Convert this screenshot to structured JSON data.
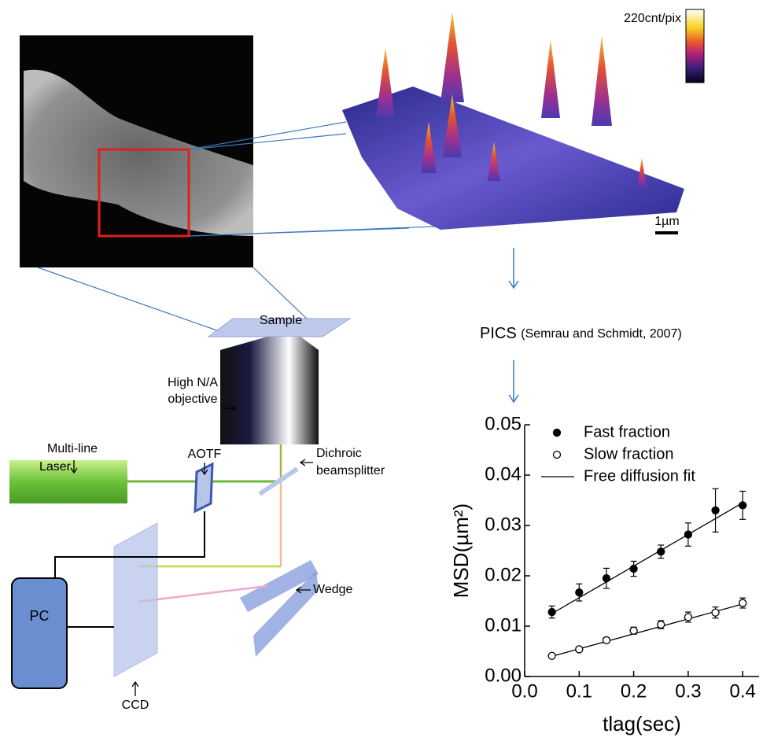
{
  "figure": {
    "colorbar_label": "220cnt/pix",
    "scale_label": "1µm",
    "method": "PICS",
    "citation": "(Semrau and Schmidt, 2007)",
    "setup": {
      "sample": "Sample",
      "objective": [
        "High N/A",
        "objective"
      ],
      "laser": [
        "Multi-line",
        "Laser"
      ],
      "aotf": "AOTF",
      "dichroic": [
        "Dichroic",
        "beamsplitter"
      ],
      "pc": "PC",
      "ccd": "CCD",
      "wedge": "Wedge"
    }
  },
  "chart_data": {
    "type": "scatter",
    "xlabel": "tlag(sec)",
    "ylabel": "MSD(µm²)",
    "xlim": [
      0,
      0.43
    ],
    "ylim": [
      0,
      0.05
    ],
    "xticks": [
      {
        "value": 0,
        "label": "0.0"
      },
      {
        "value": 0.1,
        "label": "0.1"
      },
      {
        "value": 0.2,
        "label": "0.2"
      },
      {
        "value": 0.3,
        "label": "0.3"
      },
      {
        "value": 0.4,
        "label": "0.4"
      }
    ],
    "yticks": [
      {
        "value": 0,
        "label": "0.00"
      },
      {
        "value": 0.01,
        "label": "0.01"
      },
      {
        "value": 0.02,
        "label": "0.02"
      },
      {
        "value": 0.03,
        "label": "0.03"
      },
      {
        "value": 0.04,
        "label": "0.04"
      },
      {
        "value": 0.05,
        "label": "0.05"
      }
    ],
    "x": [
      0.05,
      0.1,
      0.15,
      0.2,
      0.25,
      0.3,
      0.35,
      0.4
    ],
    "series": [
      {
        "name": "Fast fraction",
        "color": "#000000",
        "filled": true,
        "values": [
          0.0128,
          0.0167,
          0.0195,
          0.0214,
          0.0248,
          0.0282,
          0.033,
          0.034
        ],
        "errors": [
          0.0012,
          0.0017,
          0.002,
          0.0015,
          0.0013,
          0.0023,
          0.0043,
          0.0028
        ]
      },
      {
        "name": "Slow fraction",
        "color": "#000000",
        "filled": false,
        "values": [
          0.0041,
          0.0054,
          0.0072,
          0.0091,
          0.0103,
          0.0118,
          0.0127,
          0.0146
        ],
        "errors": [
          0.0003,
          0.0003,
          0.0005,
          0.0007,
          0.0008,
          0.001,
          0.0011,
          0.001
        ]
      }
    ],
    "fit": {
      "name": "Free diffusion fit",
      "color": "#000000",
      "lines": [
        {
          "x": [
            0.05,
            0.4
          ],
          "values": [
            0.0125,
            0.0345
          ]
        },
        {
          "x": [
            0.05,
            0.4
          ],
          "values": [
            0.004,
            0.0144
          ]
        }
      ]
    }
  }
}
